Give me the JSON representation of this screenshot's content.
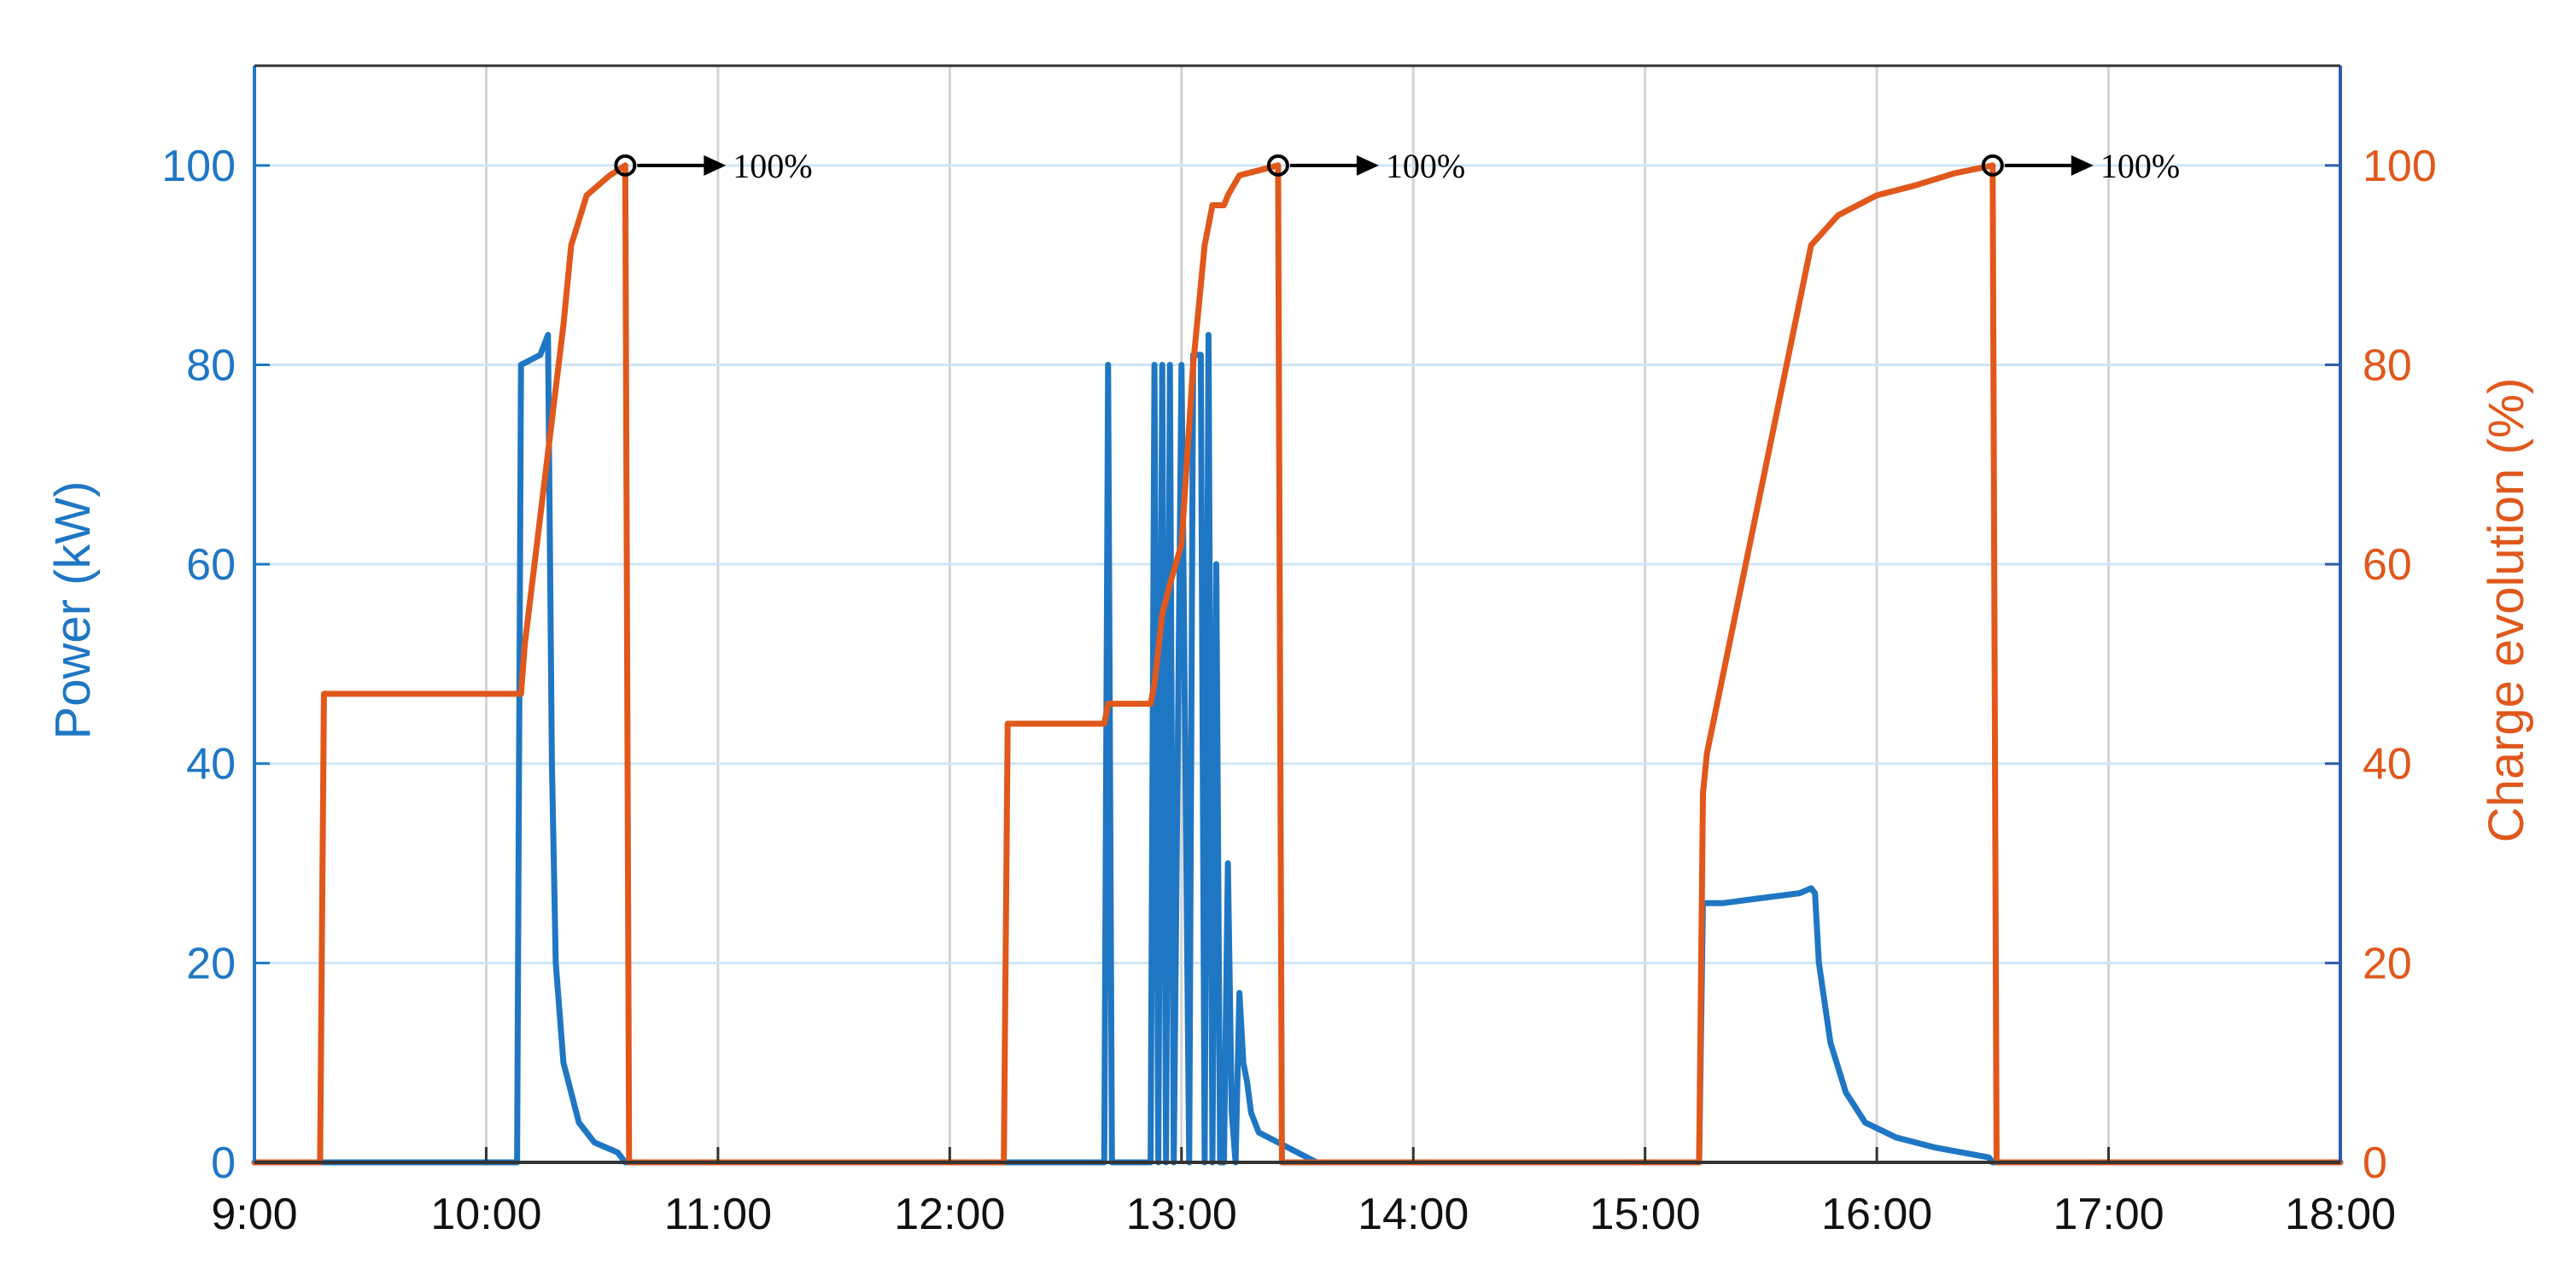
{
  "chart_data": {
    "type": "line",
    "ylabel_left": "Power (kW)",
    "ylabel_right": "Charge evolution (%)",
    "xlabel": "",
    "xlim_minutes": [
      540,
      1080
    ],
    "ylim_left": [
      0,
      110
    ],
    "ylim_right": [
      0,
      110
    ],
    "x_ticks": [
      "9:00",
      "10:00",
      "11:00",
      "12:00",
      "13:00",
      "14:00",
      "15:00",
      "16:00",
      "17:00",
      "18:00"
    ],
    "y_ticks_left": [
      "0",
      "20",
      "40",
      "60",
      "80",
      "100"
    ],
    "y_ticks_right": [
      "0",
      "20",
      "40",
      "60",
      "80",
      "100"
    ],
    "grid": true,
    "colors": {
      "power": "#1f77c4",
      "charge": "#e0581c",
      "grid": "#d4d4d4",
      "left_axis": "#1f77c4",
      "right_axis": "#2b5ea8"
    },
    "series": [
      {
        "axis": "left",
        "points": [
          [
            "9:00",
            0
          ],
          [
            "10:08",
            0
          ],
          [
            "10:09",
            80
          ],
          [
            "10:14",
            81
          ],
          [
            "10:15",
            82
          ],
          [
            "10:16",
            83
          ],
          [
            "10:17",
            40
          ],
          [
            "10:18",
            20
          ],
          [
            "10:20",
            10
          ],
          [
            "10:24",
            4
          ],
          [
            "10:28",
            2
          ],
          [
            "10:34",
            1
          ],
          [
            "10:36",
            0
          ],
          [
            "12:40",
            0
          ],
          [
            "12:41",
            80
          ],
          [
            "12:42",
            0
          ],
          [
            "12:52",
            0
          ],
          [
            "12:53",
            80
          ],
          [
            "12:54",
            0
          ],
          [
            "12:55",
            80
          ],
          [
            "12:56",
            0
          ],
          [
            "12:57",
            80
          ],
          [
            "12:58",
            0
          ],
          [
            "13:00",
            80
          ],
          [
            "13:02",
            0
          ],
          [
            "13:03",
            81
          ],
          [
            "13:05",
            81
          ],
          [
            "13:06",
            0
          ],
          [
            "13:07",
            83
          ],
          [
            "13:08",
            0
          ],
          [
            "13:09",
            60
          ],
          [
            "13:10",
            0
          ],
          [
            "13:11",
            0
          ],
          [
            "13:12",
            30
          ],
          [
            "13:13",
            5
          ],
          [
            "13:14",
            0
          ],
          [
            "13:15",
            17
          ],
          [
            "13:16",
            10
          ],
          [
            "13:17",
            8
          ],
          [
            "13:18",
            5
          ],
          [
            "13:20",
            3
          ],
          [
            "13:25",
            2
          ],
          [
            "13:30",
            1
          ],
          [
            "13:35",
            0
          ],
          [
            "15:14",
            0
          ],
          [
            "15:15",
            26
          ],
          [
            "15:20",
            26
          ],
          [
            "15:30",
            26.5
          ],
          [
            "15:40",
            27
          ],
          [
            "15:43",
            27.5
          ],
          [
            "15:44",
            27
          ],
          [
            "15:45",
            20
          ],
          [
            "15:48",
            12
          ],
          [
            "15:52",
            7
          ],
          [
            "15:57",
            4
          ],
          [
            "16:05",
            2.5
          ],
          [
            "16:15",
            1.5
          ],
          [
            "16:29",
            0.5
          ],
          [
            "16:30",
            0
          ],
          [
            "18:00",
            0
          ]
        ]
      },
      {
        "axis": "right",
        "points": [
          [
            "9:00",
            0
          ],
          [
            "9:17",
            0
          ],
          [
            "9:18",
            47
          ],
          [
            "10:09",
            47
          ],
          [
            "10:10",
            52
          ],
          [
            "10:20",
            84
          ],
          [
            "10:22",
            92
          ],
          [
            "10:26",
            97
          ],
          [
            "10:32",
            99
          ],
          [
            "10:36",
            100
          ],
          [
            "10:37",
            0
          ],
          [
            "12:14",
            0
          ],
          [
            "12:15",
            44
          ],
          [
            "12:40",
            44
          ],
          [
            "12:41",
            46
          ],
          [
            "12:52",
            46
          ],
          [
            "12:53",
            48
          ],
          [
            "12:55",
            55
          ],
          [
            "12:57",
            58
          ],
          [
            "13:00",
            62
          ],
          [
            "13:03",
            80
          ],
          [
            "13:06",
            92
          ],
          [
            "13:08",
            96
          ],
          [
            "13:11",
            96
          ],
          [
            "13:12",
            97
          ],
          [
            "13:15",
            99
          ],
          [
            "13:20",
            99.5
          ],
          [
            "13:25",
            100
          ],
          [
            "13:26",
            0
          ],
          [
            "15:14",
            0
          ],
          [
            "15:15",
            37
          ],
          [
            "15:16",
            41
          ],
          [
            "15:43",
            92
          ],
          [
            "15:50",
            95
          ],
          [
            "16:00",
            97
          ],
          [
            "16:10",
            98
          ],
          [
            "16:20",
            99.2
          ],
          [
            "16:30",
            100
          ],
          [
            "16:31",
            0
          ],
          [
            "18:00",
            0
          ]
        ]
      }
    ],
    "annotations": [
      {
        "x": "10:36",
        "y": 100,
        "text": "100%"
      },
      {
        "x": "13:25",
        "y": 100,
        "text": "100%"
      },
      {
        "x": "16:30",
        "y": 100,
        "text": "100%"
      }
    ]
  }
}
